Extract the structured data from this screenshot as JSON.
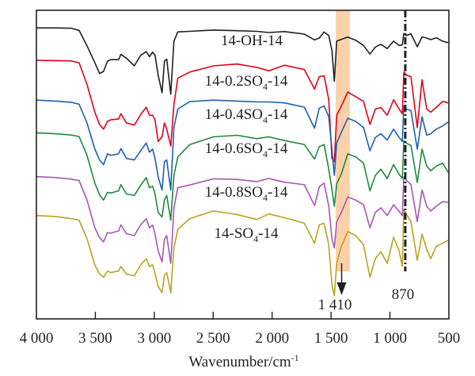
{
  "chart_data": {
    "type": "line",
    "title": "",
    "xlabel": "Wavenumber/cm",
    "xlabel_superscript": "-1",
    "ylabel": "",
    "xlim": [
      4000,
      500
    ],
    "ylim": [
      0,
      100
    ],
    "y_units": "transmittance (a.u., offset)",
    "x_reversed": true,
    "grid": false,
    "x_ticks": [
      {
        "value": 4000,
        "label": "4 000"
      },
      {
        "value": 3500,
        "label": "3 500"
      },
      {
        "value": 3000,
        "label": "3 000"
      },
      {
        "value": 2500,
        "label": "2 500"
      },
      {
        "value": 2000,
        "label": "2 000"
      },
      {
        "value": 1500,
        "label": "1 500"
      },
      {
        "value": 1000,
        "label": "1 000"
      },
      {
        "value": 500,
        "label": "500"
      }
    ],
    "x": [
      4000,
      3839,
      3705,
      3638,
      3571,
      3504,
      3464,
      3430,
      3397,
      3370,
      3303,
      3283,
      3236,
      3169,
      3115,
      3068,
      3041,
      3014,
      2994,
      2967,
      2934,
      2914,
      2894,
      2860,
      2833,
      2800,
      2699,
      2498,
      2297,
      2129,
      2029,
      1895,
      1727,
      1640,
      1600,
      1559,
      1519,
      1492,
      1472,
      1452,
      1412,
      1358,
      1291,
      1224,
      1170,
      1124,
      1077,
      1023,
      969,
      922,
      895,
      882,
      862,
      822,
      768,
      728,
      688,
      654,
      607,
      553,
      507
    ],
    "series": [
      {
        "name": "14-OH-14",
        "label_main": "14-OH-14",
        "label_sub": "",
        "label_tail": "",
        "color": "#231f20",
        "values": [
          94.3,
          94.3,
          94.2,
          93.5,
          88.5,
          83.0,
          79.5,
          80.2,
          83.5,
          84.0,
          84.0,
          85.7,
          84.5,
          82.0,
          85.4,
          86.6,
          85.0,
          86.4,
          85.5,
          79.0,
          73.3,
          83.5,
          84.2,
          72.8,
          90.0,
          93.0,
          93.2,
          93.6,
          93.4,
          93.2,
          92.8,
          93.1,
          92.3,
          90.4,
          91.0,
          93.0,
          91.8,
          87.0,
          77.0,
          90.0,
          90.6,
          91.3,
          90.3,
          88.6,
          85.8,
          88.1,
          89.0,
          87.6,
          90.0,
          88.6,
          88.8,
          92.5,
          91.8,
          92.4,
          88.2,
          91.4,
          91.0,
          90.5,
          91.1,
          90.0,
          89.5
        ]
      },
      {
        "name": "14-0.2SO4-14",
        "label_main": "14-0.2SO",
        "label_sub": "4",
        "label_tail": "-14",
        "color": "#e3001b",
        "values": [
          83.8,
          83.7,
          83.6,
          83.0,
          76.0,
          67.0,
          63.0,
          61.5,
          64.0,
          64.5,
          64.8,
          66.5,
          63.5,
          62.8,
          66.2,
          68.6,
          66.0,
          66.0,
          64.5,
          57.5,
          59.0,
          63.5,
          61.5,
          56.0,
          69.5,
          78.0,
          80.0,
          82.0,
          82.6,
          81.5,
          80.4,
          82.2,
          80.8,
          74.5,
          78.5,
          78.8,
          71.0,
          52.0,
          51.0,
          66.0,
          69.0,
          73.5,
          72.0,
          70.5,
          63.0,
          68.0,
          68.5,
          66.0,
          71.0,
          68.0,
          66.5,
          80.0,
          79.0,
          78.5,
          62.0,
          77.5,
          68.0,
          67.0,
          68.5,
          70.5,
          70.0
        ]
      },
      {
        "name": "14-0.4SO4-14",
        "label_main": "14-0.4SO",
        "label_sub": "4",
        "label_tail": "-14",
        "color": "#1f5fae",
        "values": [
          70.9,
          70.6,
          70.2,
          69.6,
          63.5,
          55.0,
          51.5,
          50.0,
          53.5,
          53.0,
          53.5,
          55.2,
          52.0,
          51.5,
          54.5,
          57.0,
          54.0,
          55.0,
          52.0,
          46.0,
          41.8,
          51.0,
          51.5,
          41.8,
          62.0,
          68.0,
          70.4,
          70.9,
          70.6,
          70.3,
          70.3,
          70.0,
          68.6,
          61.8,
          68.3,
          69.0,
          65.5,
          55.0,
          46.5,
          57.0,
          60.5,
          65.0,
          64.0,
          62.0,
          54.5,
          58.8,
          60.0,
          58.0,
          61.5,
          58.8,
          57.5,
          69.0,
          68.0,
          67.5,
          55.0,
          65.5,
          59.5,
          60.0,
          61.5,
          62.5,
          63.8
        ]
      },
      {
        "name": "14-0.6SO4-14",
        "label_main": "14-0.6SO",
        "label_sub": "4",
        "label_tail": "-14",
        "color": "#1d8a3f",
        "values": [
          60.3,
          60.0,
          59.6,
          59.1,
          53.0,
          44.0,
          40.2,
          38.5,
          41.0,
          40.8,
          41.5,
          43.5,
          40.5,
          40.0,
          43.3,
          45.8,
          42.5,
          43.0,
          40.5,
          34.5,
          33.0,
          38.5,
          40.0,
          32.0,
          46.5,
          52.5,
          56.5,
          59.0,
          59.5,
          58.4,
          59.0,
          57.8,
          56.5,
          51.8,
          55.8,
          56.5,
          48.5,
          42.0,
          36.5,
          43.8,
          47.0,
          53.5,
          52.5,
          50.5,
          41.5,
          46.5,
          48.5,
          45.5,
          50.0,
          46.8,
          45.5,
          57.8,
          57.0,
          56.2,
          44.2,
          55.0,
          49.5,
          48.0,
          49.5,
          50.5,
          47.5
        ]
      },
      {
        "name": "14-0.8SO4-14",
        "label_main": "14-0.8SO",
        "label_sub": "4",
        "label_tail": "-14",
        "color": "#a756b5",
        "values": [
          46.1,
          45.8,
          45.3,
          44.8,
          38.5,
          29.5,
          26.3,
          25.0,
          28.0,
          27.8,
          28.5,
          30.5,
          27.6,
          27.0,
          30.5,
          32.5,
          29.5,
          30.4,
          27.5,
          22.0,
          18.5,
          25.8,
          27.0,
          18.0,
          36.0,
          42.5,
          43.4,
          45.4,
          45.2,
          44.5,
          45.5,
          44.3,
          43.5,
          36.7,
          42.8,
          44.0,
          36.5,
          26.0,
          23.0,
          31.5,
          34.5,
          39.5,
          38.5,
          37.0,
          29.5,
          34.5,
          36.0,
          33.5,
          37.0,
          34.8,
          33.5,
          46.0,
          45.0,
          43.5,
          31.5,
          41.8,
          36.5,
          35.0,
          36.5,
          38.0,
          37.8
        ]
      },
      {
        "name": "14-SO4-14",
        "label_main": "14-SO",
        "label_sub": "4",
        "label_tail": "-14",
        "color": "#b8a420",
        "values": [
          33.5,
          33.2,
          32.5,
          32.0,
          26.0,
          17.5,
          14.5,
          13.5,
          15.5,
          15.0,
          15.5,
          17.0,
          14.5,
          14.0,
          17.5,
          19.5,
          17.0,
          17.5,
          14.8,
          10.5,
          8.5,
          14.0,
          15.0,
          8.5,
          23.0,
          29.0,
          32.5,
          35.0,
          33.8,
          32.2,
          34.0,
          32.8,
          31.0,
          24.5,
          30.5,
          31.0,
          24.0,
          11.0,
          7.5,
          18.0,
          23.5,
          28.3,
          27.0,
          24.0,
          13.5,
          19.5,
          21.8,
          18.0,
          26.5,
          22.0,
          17.0,
          35.5,
          34.0,
          31.5,
          19.0,
          27.5,
          22.5,
          19.5,
          23.5,
          24.5,
          25.5
        ]
      }
    ],
    "annotations": {
      "highlight_band": {
        "from": 1460,
        "to": 1340,
        "color": "#f9c99a"
      },
      "arrow": {
        "at": 1410,
        "label": "1 410"
      },
      "dash_dot_line": {
        "at": 870,
        "label": "870"
      }
    }
  }
}
